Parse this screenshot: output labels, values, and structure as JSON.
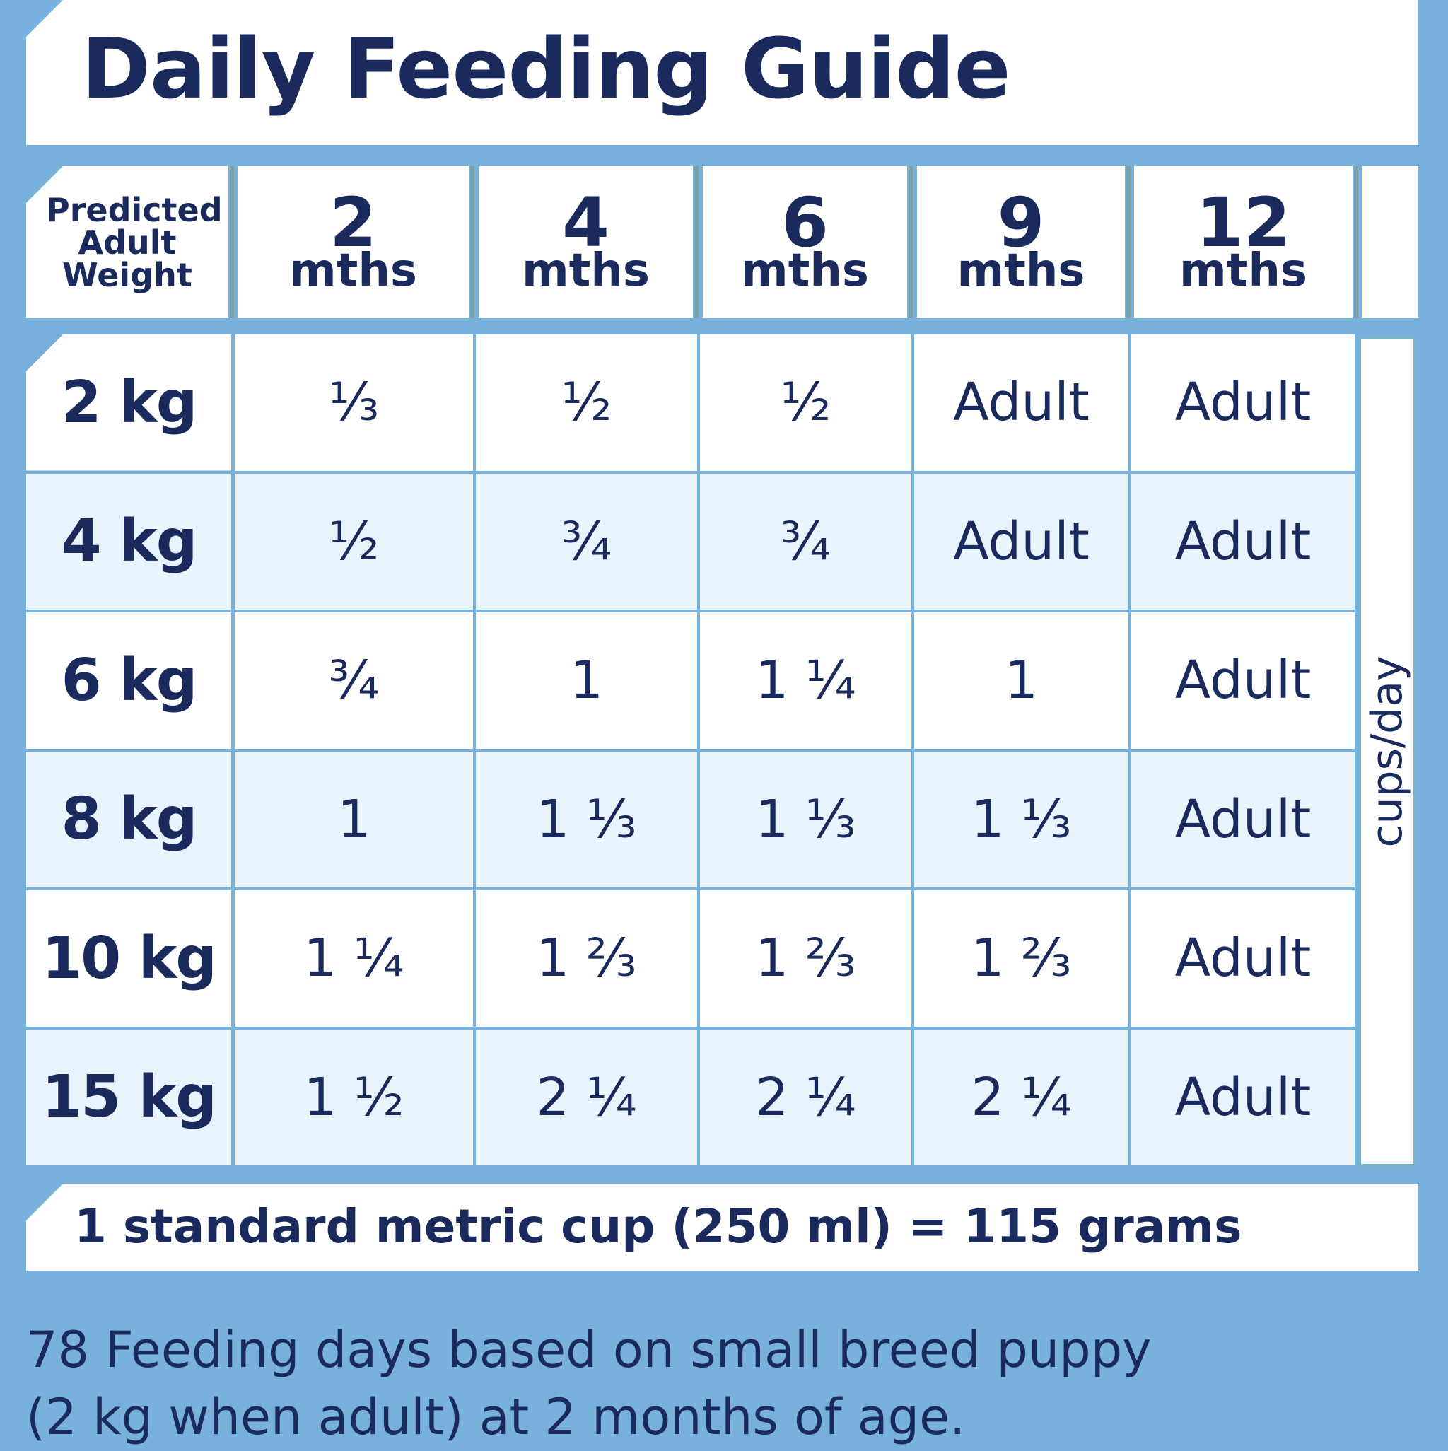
{
  "title": "Daily Feeding Guide",
  "header": {
    "weight_label": "Predicted Adult Weight",
    "ages": [
      {
        "num": "2",
        "unit": "mths"
      },
      {
        "num": "4",
        "unit": "mths"
      },
      {
        "num": "6",
        "unit": "mths"
      },
      {
        "num": "9",
        "unit": "mths"
      },
      {
        "num": "12",
        "unit": "mths"
      }
    ]
  },
  "rows": [
    {
      "weight": "2 kg",
      "values": [
        "⅓",
        "½",
        "½",
        "Adult",
        "Adult"
      ]
    },
    {
      "weight": "4 kg",
      "values": [
        "½",
        "¾",
        "¾",
        "Adult",
        "Adult"
      ]
    },
    {
      "weight": "6 kg",
      "values": [
        "¾",
        "1",
        "1 ¼",
        "1",
        "Adult"
      ]
    },
    {
      "weight": "8 kg",
      "values": [
        "1",
        "1 ⅓",
        "1 ⅓",
        "1 ⅓",
        "Adult"
      ]
    },
    {
      "weight": "10 kg",
      "values": [
        "1 ¼",
        "1 ⅔",
        "1 ⅔",
        "1 ⅔",
        "Adult"
      ]
    },
    {
      "weight": "15 kg",
      "values": [
        "1 ½",
        "2 ¼",
        "2 ¼",
        "2 ¼",
        "Adult"
      ]
    }
  ],
  "unit_label": "cups/day",
  "footer": "1 standard metric cup (250 ml) = 115 grams",
  "note": [
    "78 Feeding days based on small breed puppy",
    "(2 kg when adult) at 2 months of age."
  ],
  "colors": {
    "background": "#77b1dc",
    "text": "#1b2a5c",
    "alt_row": "#e9f3fb"
  }
}
